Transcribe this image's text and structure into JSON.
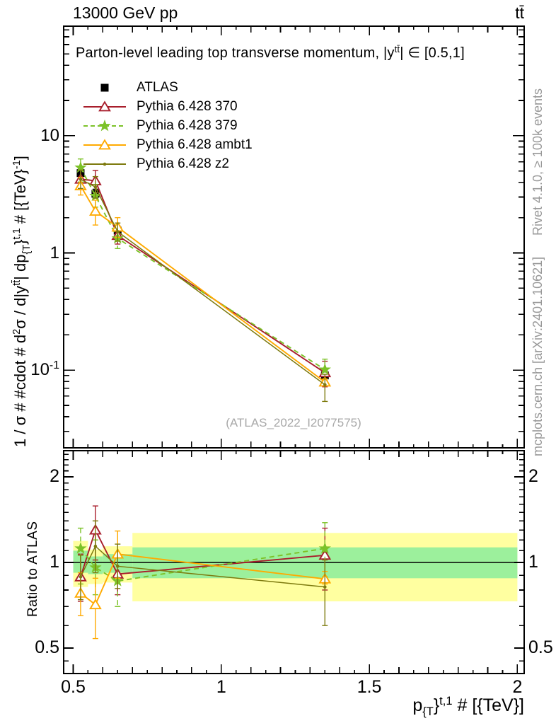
{
  "header": {
    "left": "13000 GeV pp",
    "right": "tt̄"
  },
  "panel_title": [
    {
      "t": "Parton-level leading top transverse momentum, |y"
    },
    {
      "t": "tt̄",
      "s": "sup"
    },
    {
      "t": "| ∈ [0.5,1]"
    }
  ],
  "axis_labels": {
    "y_main": [
      {
        "t": "1 / σ # #cdot # d"
      },
      {
        "t": "2",
        "s": "sup"
      },
      {
        "t": "σ / d|y"
      },
      {
        "t": "tt̄",
        "s": "sup"
      },
      {
        "t": "| dp"
      },
      {
        "t": "{T",
        "s": "sub"
      },
      {
        "t": "}"
      },
      {
        "t": "t,1",
        "s": "sup"
      },
      {
        "t": " # [{TeV}"
      },
      {
        "t": "-1",
        "s": "sup"
      },
      {
        "t": "]"
      }
    ],
    "x": [
      {
        "t": "p"
      },
      {
        "t": "{T",
        "s": "sub"
      },
      {
        "t": "}"
      },
      {
        "t": "t,1",
        "s": "sup"
      },
      {
        "t": " # [{TeV}]"
      }
    ],
    "y_ratio": "Ratio to ATLAS"
  },
  "credits": {
    "top": "Rivet 4.1.0, ≥ 100k events",
    "bottom": "mcplots.cern.ch [arXiv:2401.10621]"
  },
  "watermark": "(ATLAS_2022_I2077575)",
  "colors": {
    "frame": "#000000",
    "atlas": "#000000",
    "py370": "#a81e2c",
    "py379": "#7cc228",
    "pyambt1": "#ffaa00",
    "pyz2": "#7d7a0e",
    "band_yellow": "#ffffa0",
    "band_green": "#9cf09c",
    "watermark": "#a8a8a8",
    "credits": "#999999"
  },
  "chart_data": {
    "type": "line",
    "title": "Parton-level leading top transverse momentum, |y^tt| in [0.5,1]",
    "xlabel": "p_T^{t,1} [TeV]",
    "ylabel_main": "1/sigma d2sigma / d|y^tt| dp_T^{t,1} [1/TeV]",
    "ylabel_ratio": "Ratio to ATLAS",
    "x": [
      0.525,
      0.575,
      0.65,
      1.35
    ],
    "bin_edges": [
      0.5,
      0.55,
      0.6,
      0.7,
      2.0
    ],
    "x_ticks": [
      {
        "v": 0.5,
        "label": "0.5"
      },
      {
        "v": 1.0,
        "label": "1"
      },
      {
        "v": 1.5,
        "label": "1.5"
      },
      {
        "v": 2.0,
        "label": "2"
      }
    ],
    "main": {
      "ylog": true,
      "ylim": [
        0.022,
        86
      ],
      "y_ticks": [
        {
          "v": 10,
          "label": "10"
        },
        {
          "v": 1,
          "label": "1"
        },
        {
          "v": 0.1,
          "label": "10^-1"
        }
      ],
      "series": [
        {
          "id": "atlas",
          "name": "ATLAS",
          "marker": "square",
          "line": "none",
          "values": [
            4.8,
            3.2,
            1.55,
            0.09
          ],
          "err_lo": [
            4.45,
            2.95,
            1.42,
            0.081
          ],
          "err_hi": [
            5.2,
            3.5,
            1.7,
            0.1
          ]
        },
        {
          "id": "py370",
          "name": "Pythia 6.428 370",
          "marker": "triangle-open",
          "line": "solid",
          "values": [
            4.26,
            4.13,
            1.41,
            0.095
          ],
          "err_lo": [
            3.5,
            3.26,
            1.19,
            0.072
          ],
          "err_hi": [
            5.14,
            5.06,
            1.64,
            0.119
          ]
        },
        {
          "id": "py379",
          "name": "Pythia 6.428 379",
          "marker": "star",
          "line": "dashed",
          "values": [
            5.35,
            3.07,
            1.33,
            0.101
          ],
          "err_lo": [
            4.03,
            2.46,
            1.09,
            0.08
          ],
          "err_hi": [
            6.34,
            3.84,
            1.61,
            0.124
          ]
        },
        {
          "id": "pyambt1",
          "name": "Pythia 6.428 ambt1",
          "marker": "triangle-open",
          "line": "solid",
          "values": [
            3.74,
            2.27,
            1.66,
            0.079
          ],
          "err_lo": [
            3.12,
            1.73,
            1.36,
            0.076
          ],
          "err_hi": [
            4.42,
            2.82,
            2.0,
            0.084
          ]
        },
        {
          "id": "pyz2",
          "name": "Pythia 6.428 z2",
          "marker": "dot",
          "line": "solid",
          "values": [
            4.25,
            3.65,
            1.52,
            0.075
          ],
          "err_lo": [
            3.55,
            2.94,
            1.26,
            0.054
          ],
          "err_hi": [
            5.09,
            4.48,
            1.8,
            0.092
          ]
        }
      ]
    },
    "ratio": {
      "ylog": true,
      "ylim": [
        0.41,
        2.47
      ],
      "reference": 1.0,
      "y_ticks": [
        {
          "v": 2,
          "label": "2"
        },
        {
          "v": 1,
          "label": "1"
        },
        {
          "v": 0.5,
          "label": "0.5"
        }
      ],
      "bands": [
        {
          "x0": 0.5,
          "x1": 0.55,
          "yellow": [
            0.82,
            1.19
          ],
          "green": [
            0.92,
            1.1
          ]
        },
        {
          "x0": 0.55,
          "x1": 0.6,
          "yellow": [
            0.84,
            1.11
          ],
          "green": [
            0.91,
            1.05
          ]
        },
        {
          "x0": 0.6,
          "x1": 0.7,
          "yellow": [
            0.85,
            1.14
          ],
          "green": [
            0.92,
            1.07
          ]
        },
        {
          "x0": 0.7,
          "x1": 2.0,
          "yellow": [
            0.73,
            1.27
          ],
          "green": [
            0.88,
            1.13
          ]
        }
      ],
      "series": [
        {
          "id": "py370",
          "values": [
            0.89,
            1.3,
            0.91,
            1.06
          ],
          "err_lo": [
            0.73,
            1.02,
            0.77,
            0.8
          ],
          "err_hi": [
            1.07,
            1.58,
            1.06,
            1.32
          ]
        },
        {
          "id": "py379",
          "values": [
            1.12,
            0.96,
            0.86,
            1.12
          ],
          "err_lo": [
            0.84,
            0.77,
            0.7,
            0.89
          ],
          "err_hi": [
            1.32,
            1.2,
            1.04,
            1.38
          ]
        },
        {
          "id": "pyambt1",
          "values": [
            0.78,
            0.71,
            1.07,
            0.875
          ],
          "err_lo": [
            0.65,
            0.54,
            0.88,
            0.84
          ],
          "err_hi": [
            0.92,
            0.88,
            1.29,
            0.93
          ]
        },
        {
          "id": "pyz2",
          "values": [
            0.89,
            1.14,
            0.97,
            0.82
          ],
          "err_lo": [
            0.74,
            0.92,
            0.81,
            0.6
          ],
          "err_hi": [
            1.06,
            1.4,
            1.16,
            1.02
          ]
        }
      ]
    }
  }
}
